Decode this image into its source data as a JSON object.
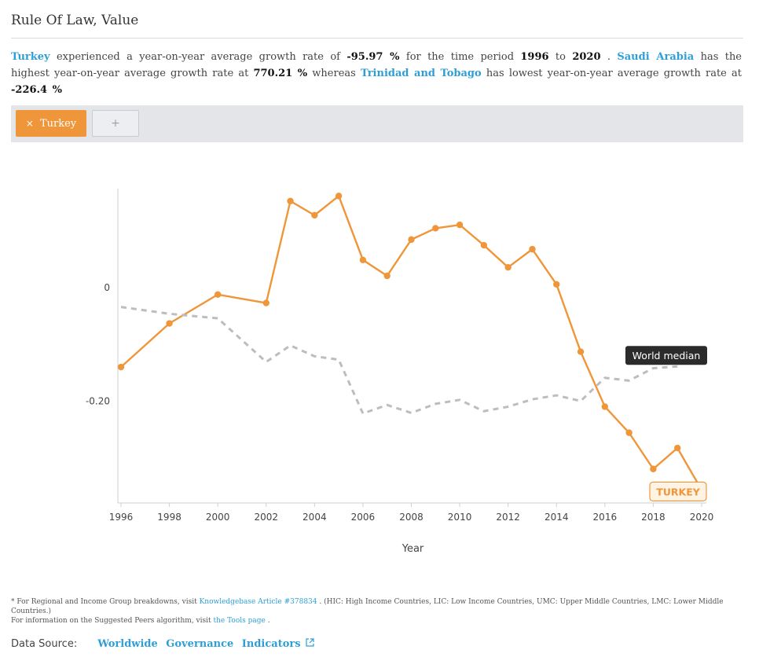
{
  "page": {
    "title": "Rule Of Law, Value"
  },
  "summary": {
    "country": "Turkey",
    "t1": " experienced  a year-on-year average  growth rate of ",
    "rate": "-95.97 %",
    "t2": " for the time period ",
    "start": "1996",
    "t3": " to ",
    "end": "2020",
    "t4": " . ",
    "top_country": "Saudi Arabia",
    "t5": " has the highest year-on-year average  growth rate at ",
    "top_rate": "770.21 %",
    "t6": " whereas ",
    "low_country": "Trinidad and Tobago",
    "t7": " has lowest year-on-year average  growth rate at ",
    "low_rate": "-226.4 %"
  },
  "toolbar": {
    "chip_close": "×",
    "chip_label": "Turkey",
    "add_label": "+"
  },
  "colors": {
    "turkey": "#f0963a",
    "median": "#bdbdbd",
    "tooltip_bg": "#2b2b2b"
  },
  "chart_data": {
    "type": "line",
    "xlabel": "Year",
    "ylabel": "",
    "x_ticks": [
      1996,
      1998,
      2000,
      2002,
      2004,
      2006,
      2008,
      2010,
      2012,
      2014,
      2016,
      2018,
      2020
    ],
    "y_ticks": [
      {
        "value": 0,
        "label": "0"
      },
      {
        "value": -0.2,
        "label": "-0.20"
      }
    ],
    "xlim": [
      1996,
      2020
    ],
    "ylim": [
      -0.38,
      0.175
    ],
    "grid": false,
    "series": [
      {
        "name": "Turkey",
        "end_label": "TURKEY",
        "style": "solid",
        "markers": true,
        "x": [
          1996,
          1998,
          2000,
          2002,
          2003,
          2004,
          2005,
          2006,
          2007,
          2008,
          2009,
          2010,
          2011,
          2012,
          2013,
          2014,
          2015,
          2016,
          2017,
          2018,
          2019,
          2020
        ],
        "y": [
          -0.14,
          -0.063,
          -0.012,
          -0.027,
          0.153,
          0.128,
          0.162,
          0.049,
          0.021,
          0.085,
          0.105,
          0.111,
          0.075,
          0.036,
          0.068,
          0.006,
          -0.113,
          -0.21,
          -0.256,
          -0.32,
          -0.283,
          -0.357
        ]
      },
      {
        "name": "World median",
        "style": "dashed",
        "markers": false,
        "x": [
          1996,
          1998,
          2000,
          2002,
          2003,
          2004,
          2005,
          2006,
          2007,
          2008,
          2009,
          2010,
          2011,
          2012,
          2013,
          2014,
          2015,
          2016,
          2017,
          2018,
          2019
        ],
        "y": [
          -0.034,
          -0.046,
          -0.054,
          -0.131,
          -0.102,
          -0.121,
          -0.127,
          -0.222,
          -0.207,
          -0.221,
          -0.205,
          -0.198,
          -0.218,
          -0.21,
          -0.197,
          -0.19,
          -0.2,
          -0.159,
          -0.164,
          -0.142,
          -0.139
        ]
      }
    ],
    "tooltip": "World median"
  },
  "footnotes": {
    "line1_a": "* For Regional and Income Group breakdowns,  visit ",
    "line1_link": "Knowledgebase  Article #378834",
    "line1_b": " . (HIC: High Income Countries,  LIC: Low Income Countries,  UMC: Upper Middle Countries,  LMC: Lower Middle Countries.)",
    "line2_a": "For information on the Suggested  Peers  algorithm,  visit ",
    "line2_link": "the Tools page",
    "line2_b": " ."
  },
  "source": {
    "label": "Data Source:",
    "link": "Worldwide Governance Indicators"
  }
}
